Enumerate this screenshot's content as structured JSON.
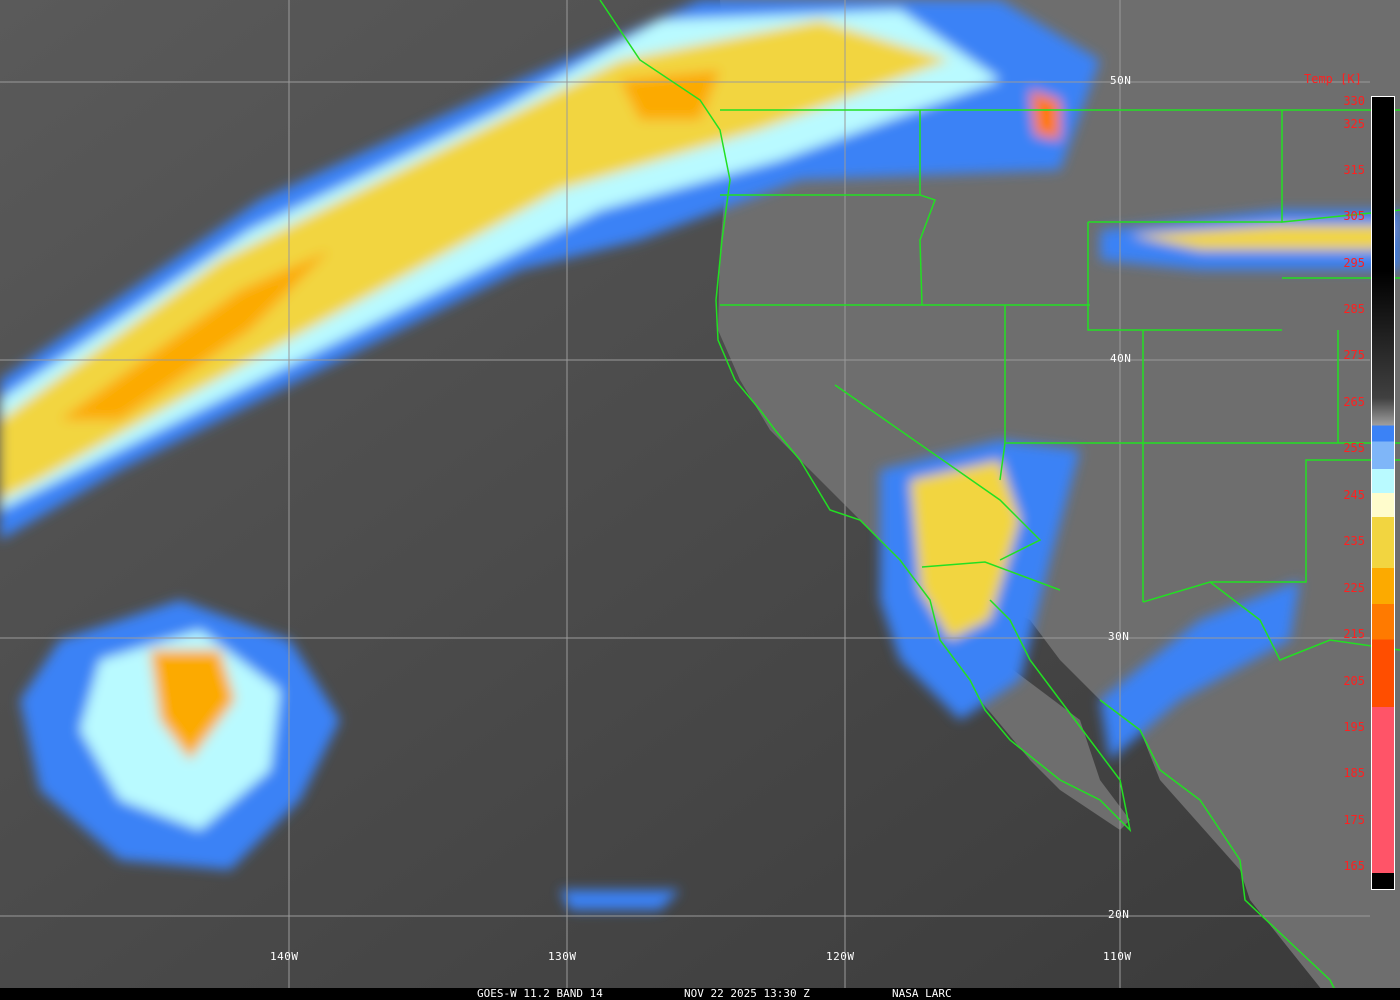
{
  "footer": {
    "satellite": "GOES-W 11.2 BAND 14",
    "datetime": "NOV 22 2025 13:30 Z",
    "source": "NASA LARC"
  },
  "latitude_labels": [
    "50N",
    "40N",
    "30N",
    "20N"
  ],
  "longitude_labels": [
    "140W",
    "130W",
    "120W",
    "110W"
  ],
  "colorbar": {
    "title": "Temp [K]",
    "ticks": [
      "330",
      "325",
      "315",
      "305",
      "295",
      "285",
      "275",
      "265",
      "255",
      "245",
      "235",
      "225",
      "215",
      "205",
      "195",
      "185",
      "175",
      "165"
    ],
    "colors": [
      "#000000",
      "#404040",
      "#a0a0a0",
      "#3b82f6",
      "#7fb6f8",
      "#b9faff",
      "#fffccc",
      "#f2d540",
      "#fcaa00",
      "#ff7a00",
      "#ff4e00",
      "#ff5468"
    ]
  },
  "colors": {
    "borders": "#22e022",
    "labels": "#ff2020",
    "grid": "#9a9a9a"
  }
}
